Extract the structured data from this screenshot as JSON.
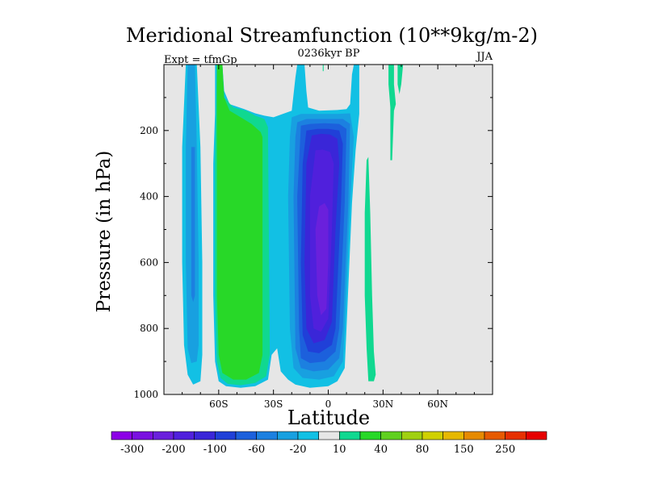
{
  "chart_data": {
    "type": "heatmap",
    "title": "Meridional Streamfunction (10**9kg/m-2)",
    "subtitle_left": "Expt = tfmGp",
    "subtitle_center": "0236kyr BP",
    "subtitle_right": "JJA",
    "xlabel": "Latitude",
    "ylabel": "Pressure (in hPa)",
    "xlim": [
      -90,
      90
    ],
    "ylim": [
      1000,
      0
    ],
    "x_ticks": [
      {
        "value": -60,
        "label": "60S"
      },
      {
        "value": -30,
        "label": "30S"
      },
      {
        "value": 0,
        "label": "0"
      },
      {
        "value": 30,
        "label": "30N"
      },
      {
        "value": 60,
        "label": "60N"
      }
    ],
    "y_ticks": [
      {
        "value": 200,
        "label": "200"
      },
      {
        "value": 400,
        "label": "400"
      },
      {
        "value": 600,
        "label": "600"
      },
      {
        "value": 800,
        "label": "800"
      },
      {
        "value": 1000,
        "label": "1000"
      }
    ],
    "background_color": "#e6e6e6",
    "colorbar": {
      "levels": [
        -300,
        -250,
        -200,
        -150,
        -100,
        -80,
        -60,
        -40,
        -20,
        -10,
        10,
        20,
        40,
        60,
        80,
        100,
        150,
        200,
        250,
        300
      ],
      "colors": [
        "#8c00e6",
        "#7a10e0",
        "#6a20dc",
        "#5020dc",
        "#3a26d8",
        "#2040d8",
        "#1c60dc",
        "#1c80e0",
        "#18a0e0",
        "#12c0e4",
        "#e6e6e6",
        "#10d890",
        "#28d828",
        "#60d020",
        "#a0d010",
        "#d0d000",
        "#e6b800",
        "#e68a00",
        "#e65a00",
        "#e63000",
        "#e60000"
      ],
      "labels": [
        {
          "value": -300,
          "label": "-300"
        },
        {
          "value": -200,
          "label": "-200"
        },
        {
          "value": -100,
          "label": "-100"
        },
        {
          "value": -60,
          "label": "-60"
        },
        {
          "value": -20,
          "label": "-20"
        },
        {
          "value": 10,
          "label": "10"
        },
        {
          "value": 40,
          "label": "40"
        },
        {
          "value": 80,
          "label": "80"
        },
        {
          "value": 150,
          "label": "150"
        },
        {
          "value": 250,
          "label": "250"
        }
      ]
    },
    "contour_regions": [
      {
        "level": -10,
        "color": "#12c0e4",
        "polygon": [
          [
            -78,
            0
          ],
          [
            -72,
            0
          ],
          [
            -70,
            250
          ],
          [
            -69,
            600
          ],
          [
            -69,
            880
          ],
          [
            -70,
            960
          ],
          [
            -74,
            970
          ],
          [
            -77,
            940
          ],
          [
            -79,
            850
          ],
          [
            -80,
            600
          ],
          [
            -80,
            250
          ]
        ]
      },
      {
        "level": -20,
        "color": "#18a0e0",
        "polygon": [
          [
            -77,
            0
          ],
          [
            -73,
            0
          ],
          [
            -72,
            250
          ],
          [
            -71,
            600
          ],
          [
            -71,
            850
          ],
          [
            -72,
            900
          ],
          [
            -75,
            905
          ],
          [
            -77,
            860
          ],
          [
            -78,
            600
          ],
          [
            -78,
            250
          ]
        ]
      },
      {
        "level": -40,
        "color": "#1c80e0",
        "polygon": [
          [
            -75,
            250
          ],
          [
            -73,
            250
          ],
          [
            -73,
            500
          ],
          [
            -73,
            700
          ],
          [
            -74,
            720
          ],
          [
            -75,
            700
          ]
        ]
      },
      {
        "level": -10,
        "color": "#12c0e4",
        "polygon": [
          [
            -62,
            0
          ],
          [
            -58,
            0
          ],
          [
            -57,
            80
          ],
          [
            -54,
            120
          ],
          [
            -46,
            135
          ],
          [
            -40,
            148
          ],
          [
            -35,
            155
          ],
          [
            -30,
            160
          ],
          [
            -20,
            140
          ],
          [
            -18,
            40
          ],
          [
            -17,
            0
          ],
          [
            -13,
            0
          ],
          [
            -12,
            80
          ],
          [
            -11,
            130
          ],
          [
            -5,
            140
          ],
          [
            5,
            138
          ],
          [
            10,
            135
          ],
          [
            12,
            120
          ],
          [
            13,
            30
          ],
          [
            14,
            0
          ],
          [
            17,
            0
          ],
          [
            17,
            150
          ],
          [
            15,
            260
          ],
          [
            13,
            420
          ],
          [
            10,
            800
          ],
          [
            9,
            920
          ],
          [
            5,
            960
          ],
          [
            0,
            975
          ],
          [
            -10,
            980
          ],
          [
            -18,
            970
          ],
          [
            -22,
            955
          ],
          [
            -26,
            930
          ],
          [
            -28,
            860
          ],
          [
            -31,
            880
          ],
          [
            -33,
            955
          ],
          [
            -40,
            975
          ],
          [
            -48,
            980
          ],
          [
            -56,
            975
          ],
          [
            -60,
            960
          ],
          [
            -62,
            900
          ],
          [
            -63,
            700
          ],
          [
            -63,
            300
          ],
          [
            -62,
            150
          ]
        ]
      },
      {
        "level": 10,
        "color": "#10d890",
        "polygon": [
          [
            -61,
            0
          ],
          [
            -58,
            0
          ],
          [
            -57,
            100
          ],
          [
            -52,
            130
          ],
          [
            -45,
            140
          ],
          [
            -40,
            155
          ],
          [
            -35,
            165
          ],
          [
            -33,
            190
          ],
          [
            -32,
            880
          ],
          [
            -34,
            945
          ],
          [
            -40,
            965
          ],
          [
            -48,
            972
          ],
          [
            -55,
            968
          ],
          [
            -59,
            950
          ],
          [
            -61,
            900
          ],
          [
            -62,
            700
          ],
          [
            -62,
            300
          ]
        ]
      },
      {
        "level": 20,
        "color": "#28d828",
        "polygon": [
          [
            -61,
            0
          ],
          [
            -58,
            0
          ],
          [
            -57,
            100
          ],
          [
            -54,
            140
          ],
          [
            -48,
            160
          ],
          [
            -42,
            180
          ],
          [
            -37,
            205
          ],
          [
            -36,
            220
          ],
          [
            -36,
            880
          ],
          [
            -38,
            935
          ],
          [
            -45,
            955
          ],
          [
            -52,
            955
          ],
          [
            -58,
            935
          ],
          [
            -60,
            880
          ],
          [
            -61,
            700
          ],
          [
            -61,
            300
          ]
        ]
      },
      {
        "level": -20,
        "color": "#18a0e0",
        "polygon": [
          [
            -20,
            160
          ],
          [
            -15,
            150
          ],
          [
            -5,
            150
          ],
          [
            5,
            150
          ],
          [
            12,
            148
          ],
          [
            14,
            220
          ],
          [
            12,
            420
          ],
          [
            9,
            800
          ],
          [
            8,
            900
          ],
          [
            3,
            945
          ],
          [
            -5,
            955
          ],
          [
            -14,
            950
          ],
          [
            -19,
            920
          ],
          [
            -21,
            800
          ],
          [
            -22,
            400
          ],
          [
            -21,
            220
          ]
        ]
      },
      {
        "level": -40,
        "color": "#1c80e0",
        "polygon": [
          [
            -17,
            175
          ],
          [
            -12,
            165
          ],
          [
            -2,
            165
          ],
          [
            8,
            165
          ],
          [
            12,
            180
          ],
          [
            11,
            420
          ],
          [
            8,
            800
          ],
          [
            6,
            890
          ],
          [
            0,
            925
          ],
          [
            -8,
            930
          ],
          [
            -15,
            920
          ],
          [
            -18,
            860
          ],
          [
            -19,
            400
          ],
          [
            -18,
            220
          ]
        ]
      },
      {
        "level": -60,
        "color": "#1c60dc",
        "polygon": [
          [
            -15,
            185
          ],
          [
            -10,
            180
          ],
          [
            -2,
            178
          ],
          [
            6,
            180
          ],
          [
            10,
            195
          ],
          [
            9,
            420
          ],
          [
            6,
            800
          ],
          [
            4,
            870
          ],
          [
            -2,
            900
          ],
          [
            -10,
            905
          ],
          [
            -15,
            890
          ],
          [
            -16,
            800
          ],
          [
            -17,
            400
          ]
        ]
      },
      {
        "level": -80,
        "color": "#2040d8",
        "polygon": [
          [
            -12,
            200
          ],
          [
            -6,
            195
          ],
          [
            0,
            195
          ],
          [
            6,
            200
          ],
          [
            8,
            240
          ],
          [
            7,
            420
          ],
          [
            4,
            800
          ],
          [
            2,
            850
          ],
          [
            -5,
            875
          ],
          [
            -11,
            870
          ],
          [
            -14,
            820
          ],
          [
            -15,
            600
          ],
          [
            -14,
            300
          ]
        ]
      },
      {
        "level": -100,
        "color": "#3a26d8",
        "polygon": [
          [
            -9,
            215
          ],
          [
            -4,
            210
          ],
          [
            1,
            212
          ],
          [
            5,
            225
          ],
          [
            6,
            300
          ],
          [
            4,
            500
          ],
          [
            2,
            780
          ],
          [
            -2,
            835
          ],
          [
            -8,
            845
          ],
          [
            -12,
            800
          ],
          [
            -13,
            600
          ],
          [
            -12,
            300
          ]
        ]
      },
      {
        "level": -150,
        "color": "#5020dc",
        "polygon": [
          [
            -7,
            260
          ],
          [
            -3,
            258
          ],
          [
            1,
            265
          ],
          [
            3,
            300
          ],
          [
            2,
            500
          ],
          [
            0,
            770
          ],
          [
            -4,
            810
          ],
          [
            -8,
            800
          ],
          [
            -10,
            700
          ],
          [
            -10,
            400
          ]
        ]
      },
      {
        "level": -200,
        "color": "#6a20dc",
        "polygon": [
          [
            -5,
            430
          ],
          [
            -2,
            420
          ],
          [
            0,
            440
          ],
          [
            0,
            600
          ],
          [
            -1,
            740
          ],
          [
            -4,
            760
          ],
          [
            -6,
            700
          ],
          [
            -7,
            500
          ]
        ]
      },
      {
        "level": 10,
        "color": "#10d890",
        "polygon": [
          [
            -3,
            0
          ],
          [
            -2.5,
            0
          ],
          [
            -2.5,
            20
          ],
          [
            -3,
            20
          ]
        ]
      },
      {
        "level": 10,
        "color": "#10d890",
        "polygon": [
          [
            21,
            290
          ],
          [
            22,
            280
          ],
          [
            23,
            450
          ],
          [
            24,
            700
          ],
          [
            25,
            870
          ],
          [
            26,
            940
          ],
          [
            25,
            960
          ],
          [
            22,
            960
          ],
          [
            21,
            860
          ],
          [
            20,
            700
          ],
          [
            20,
            450
          ]
        ]
      },
      {
        "level": 10,
        "color": "#10d890",
        "polygon": [
          [
            33,
            0
          ],
          [
            36,
            0
          ],
          [
            36,
            60
          ],
          [
            37,
            120
          ],
          [
            36,
            140
          ],
          [
            35,
            290
          ],
          [
            34,
            290
          ],
          [
            34,
            130
          ],
          [
            33,
            60
          ]
        ]
      },
      {
        "level": 10,
        "color": "#10d890",
        "polygon": [
          [
            38,
            0
          ],
          [
            41,
            0
          ],
          [
            40,
            60
          ],
          [
            39,
            90
          ],
          [
            38,
            60
          ]
        ]
      }
    ]
  }
}
